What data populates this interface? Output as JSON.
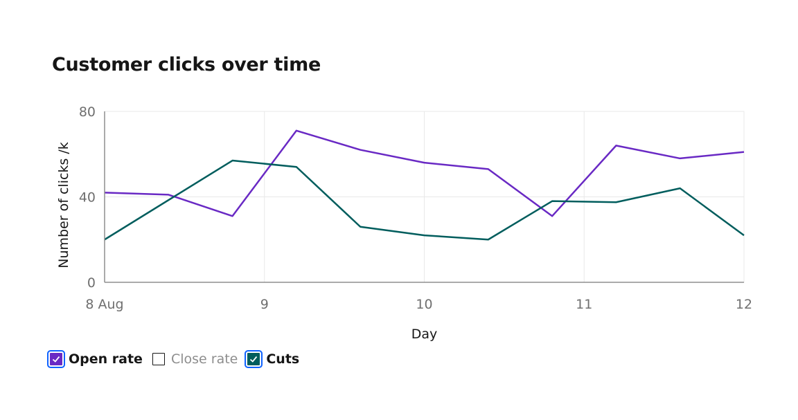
{
  "chart_data": {
    "type": "line",
    "title": "Customer clicks over time",
    "xlabel": "Day",
    "ylabel": "Number of clicks /k",
    "xlim": [
      8,
      12
    ],
    "ylim": [
      0,
      80
    ],
    "x_ticks": [
      {
        "value": 8,
        "label": "8 Aug"
      },
      {
        "value": 9,
        "label": "9"
      },
      {
        "value": 10,
        "label": "10"
      },
      {
        "value": 11,
        "label": "11"
      },
      {
        "value": 12,
        "label": "12"
      }
    ],
    "y_ticks": [
      {
        "value": 0,
        "label": "0"
      },
      {
        "value": 40,
        "label": "40"
      },
      {
        "value": 80,
        "label": "80"
      }
    ],
    "grid": true,
    "legend_position": "bottom-left",
    "series": [
      {
        "name": "Open rate",
        "color": "#6929c4",
        "visible": true,
        "x": [
          8,
          8.4,
          8.8,
          9.2,
          9.6,
          10,
          10.4,
          10.8,
          11.2,
          11.6,
          12
        ],
        "values": [
          42,
          41,
          31,
          71,
          62,
          56,
          53,
          31,
          64,
          58,
          61
        ]
      },
      {
        "name": "Close rate",
        "color": "#1192e8",
        "visible": false,
        "x": [],
        "values": []
      },
      {
        "name": "Cuts",
        "color": "#005d5d",
        "visible": true,
        "x": [
          8,
          8.8,
          9.2,
          9.6,
          10,
          10.4,
          10.8,
          11.2,
          11.6,
          12
        ],
        "values": [
          20,
          57,
          54,
          26,
          22,
          20,
          38,
          37.5,
          44,
          22
        ]
      }
    ]
  }
}
